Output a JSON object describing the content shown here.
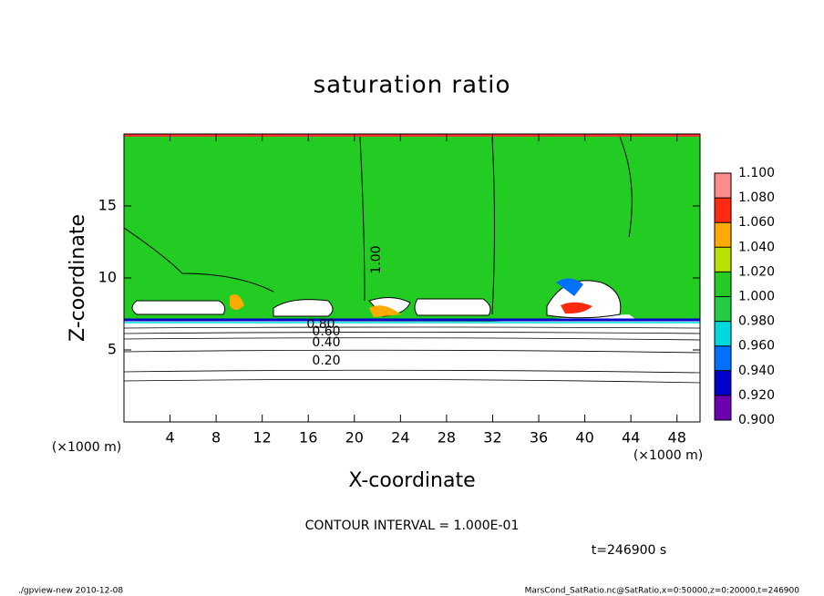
{
  "chart_data": {
    "type": "contour",
    "title": "saturation ratio",
    "xlabel": "X-coordinate",
    "ylabel": "Z-coordinate",
    "x_unit": "(×1000 m)",
    "y_unit": "(×1000 m)",
    "xlim": [
      0,
      50
    ],
    "ylim": [
      0,
      20
    ],
    "xticks": [
      4,
      8,
      12,
      16,
      20,
      24,
      28,
      32,
      36,
      40,
      44,
      48
    ],
    "yticks": [
      5,
      10,
      15
    ],
    "contour_labels": [
      {
        "value": 1.0,
        "label": "1.00"
      },
      {
        "value": 0.8,
        "label": "0.80"
      },
      {
        "value": 0.6,
        "label": "0.60"
      },
      {
        "value": 0.4,
        "label": "0.40"
      },
      {
        "value": 0.2,
        "label": "0.20"
      }
    ],
    "colorbar": {
      "levels": [
        {
          "value": 0.9,
          "label": "0.900"
        },
        {
          "value": 0.92,
          "label": "0.920"
        },
        {
          "value": 0.94,
          "label": "0.940"
        },
        {
          "value": 0.96,
          "label": "0.960"
        },
        {
          "value": 0.98,
          "label": "0.980"
        },
        {
          "value": 1.0,
          "label": "1.000"
        },
        {
          "value": 1.02,
          "label": "1.020"
        },
        {
          "value": 1.04,
          "label": "1.040"
        },
        {
          "value": 1.06,
          "label": "1.060"
        },
        {
          "value": 1.08,
          "label": "1.080"
        },
        {
          "value": 1.1,
          "label": "1.100"
        }
      ],
      "colors": [
        "#6a00b0",
        "#0000c8",
        "#0070ff",
        "#00d8e0",
        "#22cc44",
        "#22cc22",
        "#b8e000",
        "#ffaa00",
        "#ff2a10",
        "#ff8c8c"
      ]
    },
    "contour_interval": "CONTOUR INTERVAL = 1.000E-01",
    "time": "t=246900 s",
    "footer_left": "./gpview-new   2010-12-08",
    "footer_right": "MarsCond_SatRatio.nc@SatRatio,x=0:50000,z=0:20000,t=246900"
  }
}
